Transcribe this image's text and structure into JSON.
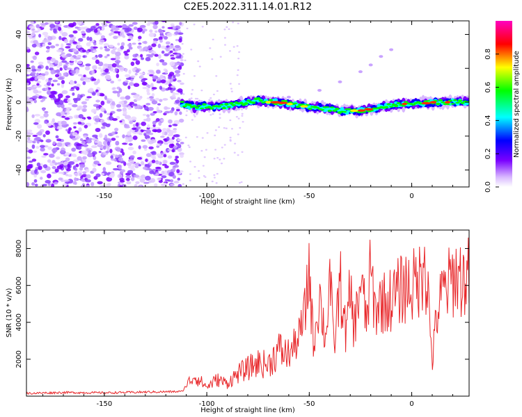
{
  "title": "C2E5.2022.311.14.01.R12",
  "chart_data": [
    {
      "type": "heatmap",
      "xlabel": "Height of straight line (km)",
      "ylabel": "Frequency (Hz)",
      "xlim": [
        -188,
        28
      ],
      "ylim": [
        -50,
        48
      ],
      "xticks": [
        -150,
        -100,
        -50,
        0
      ],
      "xtick_labels": [
        "-150",
        "-100",
        "-50",
        "0"
      ],
      "yticks": [
        -40,
        -20,
        0,
        20,
        40
      ],
      "ytick_labels": [
        "-40",
        "-20",
        "0",
        "20",
        "40"
      ],
      "description_values": {
        "noise_region_x": [
          -188,
          -112
        ],
        "signal_track": [
          [
            -112,
            -1
          ],
          [
            -105,
            -3
          ],
          [
            -100,
            -2
          ],
          [
            -95,
            -3
          ],
          [
            -90,
            -2
          ],
          [
            -85,
            -1
          ],
          [
            -80,
            0
          ],
          [
            -75,
            1
          ],
          [
            -70,
            0
          ],
          [
            -65,
            0
          ],
          [
            -60,
            -1
          ],
          [
            -55,
            -2
          ],
          [
            -50,
            -3
          ],
          [
            -45,
            -3
          ],
          [
            -40,
            -4
          ],
          [
            -35,
            -5
          ],
          [
            -30,
            -5
          ],
          [
            -25,
            -5
          ],
          [
            -20,
            -4
          ],
          [
            -15,
            -3
          ],
          [
            -10,
            -2
          ],
          [
            -5,
            -1
          ],
          [
            0,
            -1
          ],
          [
            5,
            -1
          ],
          [
            10,
            0
          ],
          [
            15,
            0
          ],
          [
            20,
            0
          ],
          [
            25,
            0
          ]
        ],
        "faint_branch": [
          [
            -60,
            3
          ],
          [
            -45,
            7
          ],
          [
            -35,
            12
          ],
          [
            -25,
            18
          ],
          [
            -20,
            22
          ],
          [
            -15,
            27
          ],
          [
            -10,
            31
          ]
        ]
      },
      "colorbar": {
        "label": "Normalized spectral amplitude",
        "range": [
          0,
          1
        ],
        "ticks": [
          0.0,
          0.2,
          0.4,
          0.6,
          0.8
        ],
        "tick_labels": [
          "0.0",
          "0.2",
          "0.4",
          "0.6",
          "0.8"
        ]
      },
      "grid": false
    },
    {
      "type": "line",
      "xlabel": "Height of straight line (km)",
      "ylabel": "SNR (10 * v/v)",
      "xlim": [
        -188,
        28
      ],
      "ylim": [
        0,
        9000
      ],
      "xticks": [
        -150,
        -100,
        -50,
        0
      ],
      "xtick_labels": [
        "-150",
        "-100",
        "-50",
        "0"
      ],
      "yticks": [
        2000,
        4000,
        6000,
        8000
      ],
      "ytick_labels": [
        "2000",
        "4000",
        "6000",
        "8000"
      ],
      "series": [
        {
          "color": "#e8272a",
          "x": [
            -188,
            -170,
            -150,
            -130,
            -112,
            -110,
            -106,
            -100,
            -95,
            -90,
            -85,
            -80,
            -75,
            -70,
            -65,
            -60,
            -55,
            -52,
            -50,
            -48,
            -45,
            -42,
            -40,
            -38,
            -35,
            -32,
            -30,
            -28,
            -25,
            -22,
            -20,
            -18,
            -15,
            -12,
            -10,
            -8,
            -5,
            -2,
            0,
            3,
            5,
            6,
            7,
            8,
            10,
            12,
            15,
            18,
            20,
            22,
            25,
            28
          ],
          "y": [
            150,
            200,
            180,
            220,
            250,
            600,
            1100,
            500,
            900,
            700,
            1200,
            1500,
            1800,
            1700,
            2500,
            2200,
            3200,
            4500,
            7100,
            2800,
            5500,
            3000,
            6700,
            2500,
            6200,
            3200,
            5700,
            3600,
            6300,
            4000,
            6800,
            4600,
            5200,
            5000,
            5300,
            5400,
            5800,
            6000,
            5900,
            6200,
            6500,
            8900,
            6300,
            5600,
            1800,
            4200,
            5600,
            6000,
            6400,
            6600,
            6300,
            6500
          ]
        }
      ],
      "grid": false
    }
  ]
}
